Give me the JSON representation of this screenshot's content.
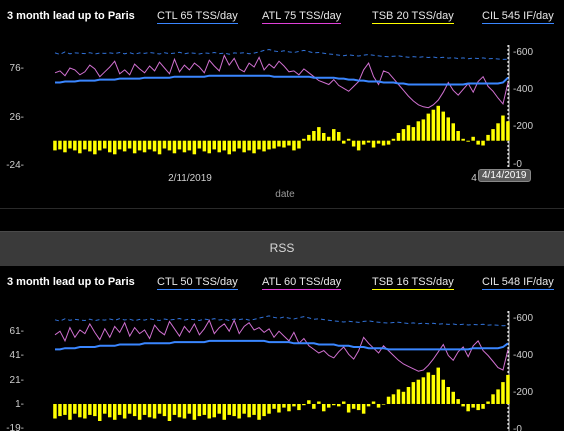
{
  "panels": [
    {
      "title": "3 month lead up to Paris",
      "legend": {
        "ctl": "CTL  65 TSS/day",
        "atl": "ATL  75 TSS/day",
        "tsb": "TSB  20 TSS/day",
        "cil": "CIL  545 IF/day"
      },
      "left_ticks": [
        "76-",
        "26-",
        "-24-"
      ],
      "right_ticks": [
        "-600",
        "-400",
        "-200",
        "-0"
      ],
      "x_ticks": [
        "2/11/2019"
      ],
      "x_cut_label": "4",
      "x_label": "date",
      "cursor_label": "4/14/2019"
    },
    {
      "title": "3 month lead up to Paris",
      "legend": {
        "ctl": "CTL  50 TSS/day",
        "atl": "ATL  60 TSS/day",
        "tsb": "TSB  16 TSS/day",
        "cil": "CIL  548 IF/day"
      },
      "left_ticks": [
        "61-",
        "41-",
        "21-",
        "1-",
        "-19-"
      ],
      "right_ticks": [
        "-600",
        "-400",
        "-200",
        "-0"
      ]
    }
  ],
  "separator": {
    "label": "RSS"
  },
  "colors": {
    "ctl": "#3a86ff",
    "atl": "#d070d0",
    "tsb": "#ffff00",
    "cil": "#3a86ff"
  },
  "chart_data": [
    {
      "type": "line",
      "title": "3 month lead up to Paris",
      "xlabel": "date",
      "x_ticks": [
        "2/11/2019",
        "4/14/2019"
      ],
      "y_left_ticks": [
        76,
        26,
        -24
      ],
      "y_right_ticks": [
        600,
        400,
        200,
        0
      ],
      "y_right_range": [
        0,
        600
      ],
      "series_summary": {
        "ctl": "CTL 65 TSS/day",
        "atl": "ATL 75 TSS/day",
        "tsb": "TSB 20 TSS/day",
        "cil": "CIL 545 IF/day"
      },
      "n_points": 92,
      "ctl": [
        60,
        60,
        61,
        61,
        61,
        62,
        62,
        62,
        62,
        63,
        63,
        63,
        63,
        64,
        64,
        64,
        64,
        64,
        65,
        65,
        65,
        65,
        65,
        65,
        66,
        66,
        66,
        66,
        66,
        66,
        66,
        67,
        67,
        67,
        67,
        67,
        67,
        67,
        67,
        67,
        67,
        67,
        67,
        67,
        66,
        66,
        66,
        66,
        66,
        66,
        66,
        66,
        65,
        65,
        65,
        65,
        65,
        64,
        64,
        63,
        63,
        62,
        62,
        61,
        61,
        61,
        60,
        60,
        60,
        59,
        59,
        58,
        58,
        58,
        58,
        58,
        58,
        58,
        58,
        58,
        58,
        58,
        58,
        59,
        59,
        59,
        59,
        59,
        59,
        59,
        60,
        65
      ],
      "atl": [
        70,
        72,
        67,
        75,
        73,
        68,
        71,
        78,
        74,
        66,
        71,
        76,
        82,
        69,
        73,
        68,
        79,
        74,
        70,
        77,
        72,
        81,
        75,
        69,
        84,
        71,
        78,
        73,
        80,
        76,
        70,
        83,
        77,
        72,
        88,
        78,
        85,
        74,
        71,
        80,
        76,
        86,
        73,
        79,
        75,
        82,
        77,
        71,
        72,
        68,
        74,
        70,
        66,
        62,
        60,
        58,
        63,
        57,
        54,
        51,
        56,
        61,
        73,
        80,
        66,
        58,
        72,
        70,
        64,
        58,
        52,
        46,
        41,
        37,
        35,
        34,
        37,
        42,
        50,
        60,
        52,
        47,
        53,
        59,
        50,
        61,
        66,
        56,
        51,
        44,
        38,
        60
      ],
      "tsb": [
        -10,
        -9,
        -12,
        -8,
        -10,
        -13,
        -9,
        -11,
        -14,
        -10,
        -8,
        -12,
        -14,
        -9,
        -11,
        -8,
        -13,
        -10,
        -12,
        -9,
        -11,
        -14,
        -8,
        -10,
        -13,
        -9,
        -12,
        -10,
        -14,
        -8,
        -11,
        -13,
        -9,
        -12,
        -10,
        -14,
        -11,
        -8,
        -12,
        -10,
        -13,
        -9,
        -11,
        -9,
        -8,
        -6,
        -7,
        -5,
        -10,
        -8,
        2,
        6,
        10,
        14,
        8,
        4,
        12,
        9,
        -3,
        2,
        -6,
        -10,
        -4,
        -2,
        -7,
        -3,
        -5,
        -4,
        2,
        8,
        12,
        16,
        14,
        20,
        22,
        28,
        32,
        36,
        30,
        24,
        18,
        10,
        2,
        -1,
        4,
        -4,
        -5,
        6,
        12,
        18,
        26,
        20
      ],
      "cil": [
        590,
        582,
        595,
        585,
        590,
        588,
        586,
        591,
        584,
        589,
        587,
        590,
        586,
        592,
        585,
        591,
        583,
        590,
        587,
        592,
        588,
        584,
        591,
        586,
        589,
        593,
        585,
        590,
        588,
        584,
        590,
        587,
        592,
        586,
        589,
        583,
        590,
        588,
        591,
        585,
        589,
        595,
        603,
        608,
        600,
        596,
        601,
        595,
        592,
        598,
        603,
        597,
        590,
        592,
        588,
        584,
        581,
        578,
        575,
        579,
        576,
        573,
        578,
        581,
        577,
        574,
        571,
        569,
        572,
        574,
        570,
        567,
        570,
        566,
        569,
        565,
        568,
        563,
        566,
        562,
        564,
        560,
        563,
        559,
        562,
        560,
        563,
        558,
        560,
        557,
        555,
        556
      ]
    },
    {
      "type": "line",
      "title": "3 month lead up to Paris",
      "y_left_ticks": [
        61,
        41,
        21,
        1,
        -19
      ],
      "y_right_ticks": [
        600,
        400,
        200,
        0
      ],
      "y_right_range": [
        0,
        600
      ],
      "series_summary": {
        "ctl": "CTL 50 TSS/day",
        "atl": "ATL 60 TSS/day",
        "tsb": "TSB 16 TSS/day",
        "cil": "CIL 548 IF/day"
      },
      "n_points": 92,
      "ctl": [
        45,
        45,
        46,
        46,
        46,
        47,
        47,
        47,
        47,
        48,
        48,
        48,
        48,
        49,
        49,
        49,
        49,
        49,
        50,
        50,
        50,
        50,
        50,
        50,
        51,
        51,
        51,
        51,
        51,
        51,
        51,
        52,
        52,
        52,
        52,
        52,
        52,
        52,
        52,
        52,
        52,
        52,
        52,
        51,
        51,
        51,
        51,
        51,
        50,
        50,
        50,
        50,
        50,
        49,
        49,
        49,
        49,
        48,
        48,
        48,
        47,
        47,
        47,
        46,
        46,
        46,
        46,
        45,
        45,
        45,
        45,
        45,
        45,
        45,
        45,
        45,
        45,
        45,
        45,
        45,
        45,
        45,
        45,
        45,
        46,
        46,
        46,
        46,
        46,
        46,
        47,
        50
      ],
      "atl": [
        57,
        60,
        52,
        63,
        55,
        61,
        58,
        66,
        59,
        53,
        62,
        55,
        64,
        59,
        67,
        56,
        63,
        58,
        61,
        54,
        65,
        60,
        57,
        68,
        62,
        56,
        64,
        59,
        66,
        57,
        62,
        69,
        58,
        63,
        66,
        60,
        69,
        58,
        64,
        67,
        61,
        63,
        59,
        62,
        55,
        60,
        56,
        52,
        59,
        50,
        54,
        48,
        45,
        42,
        44,
        40,
        38,
        43,
        47,
        41,
        37,
        44,
        55,
        50,
        46,
        42,
        48,
        44,
        40,
        36,
        33,
        31,
        29,
        27,
        28,
        32,
        37,
        43,
        49,
        40,
        36,
        43,
        47,
        39,
        48,
        52,
        44,
        40,
        35,
        30,
        28,
        45
      ],
      "tsb": [
        -12,
        -10,
        -9,
        -13,
        -8,
        -11,
        -12,
        -9,
        -10,
        -14,
        -8,
        -11,
        -13,
        -9,
        -12,
        -8,
        -10,
        -13,
        -9,
        -11,
        -12,
        -8,
        -10,
        -14,
        -9,
        -11,
        -12,
        -8,
        -13,
        -10,
        -9,
        -12,
        -11,
        -8,
        -13,
        -9,
        -10,
        -12,
        -8,
        -11,
        -9,
        -13,
        -10,
        -8,
        -4,
        -7,
        -3,
        -6,
        -2,
        -5,
        -1,
        3,
        -4,
        2,
        -6,
        -3,
        -1,
        -2,
        2,
        -7,
        -4,
        -5,
        -8,
        -2,
        2,
        -3,
        0,
        6,
        8,
        12,
        10,
        14,
        18,
        20,
        22,
        26,
        24,
        30,
        20,
        14,
        10,
        4,
        -2,
        -6,
        -3,
        -5,
        -4,
        2,
        8,
        12,
        18,
        24
      ],
      "cil": [
        585,
        578,
        590,
        582,
        587,
        584,
        581,
        588,
        580,
        586,
        583,
        589,
        582,
        591,
        584,
        588,
        580,
        587,
        583,
        590,
        585,
        581,
        589,
        584,
        587,
        592,
        583,
        588,
        586,
        581,
        589,
        585,
        591,
        584,
        588,
        581,
        589,
        586,
        590,
        583,
        587,
        594,
        600,
        606,
        598,
        593,
        600,
        594,
        589,
        596,
        602,
        595,
        588,
        590,
        586,
        582,
        579,
        576,
        573,
        577,
        574,
        571,
        576,
        579,
        575,
        572,
        569,
        567,
        570,
        572,
        568,
        565,
        568,
        564,
        567,
        563,
        566,
        561,
        564,
        560,
        562,
        558,
        561,
        557,
        560,
        558,
        561,
        556,
        558,
        555,
        553,
        554
      ]
    }
  ]
}
